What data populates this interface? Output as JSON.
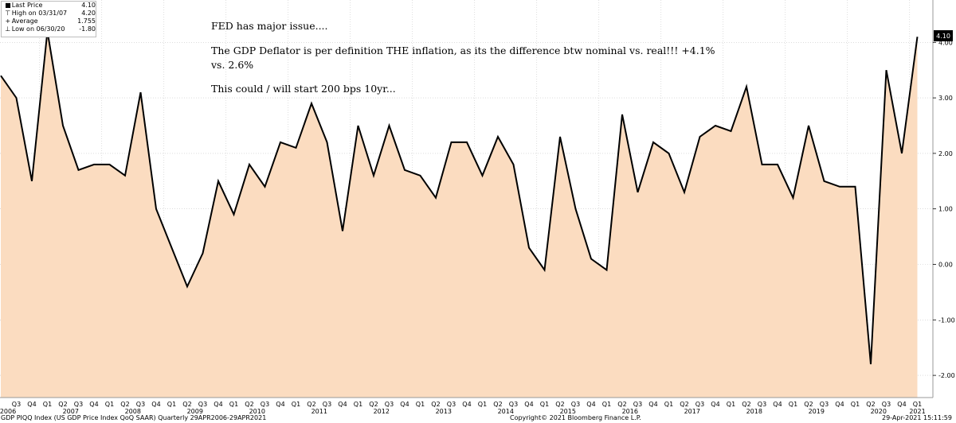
{
  "legend": {
    "rows": [
      {
        "label": "Last Price",
        "value": "4.10",
        "symbol": "■"
      },
      {
        "label": "High on 03/31/07",
        "value": "4.20",
        "symbol": "⊤"
      },
      {
        "label": "Average",
        "value": "1.755",
        "symbol": "+"
      },
      {
        "label": "Low on 06/30/20",
        "value": "-1.80",
        "symbol": "⊥"
      }
    ]
  },
  "annotation": {
    "line1": "FED has major issue....",
    "line2": "The GDP Deflator is per definition THE inflation, as its the difference btw nominal vs. real!!!  +4.1%",
    "line3": "vs. 2.6%",
    "line4": "This could / will start 200 bps 10yr..."
  },
  "footer": {
    "left": "GDP PIQQ Index (US GDP Price Index QoQ SAAR)  Quarterly 29APR2006-29APR2021",
    "center": "Copyright© 2021 Bloomberg Finance L.P.",
    "right": "29-Apr-2021 15:11:59"
  },
  "colors": {
    "fill": "#fbdcc0",
    "line": "#000000",
    "grid": "#c8c8c8",
    "label_bg": "#000000"
  },
  "chart_data": {
    "type": "area",
    "title": "",
    "ylim": [
      -2.4,
      4.6
    ],
    "yticks": [
      "-2.00",
      "-1.00",
      "0.00",
      "1.00",
      "2.00",
      "3.00",
      "4.00"
    ],
    "last_label": "4.10",
    "grid": true,
    "x": [
      "2006Q2",
      "2006Q3",
      "2006Q4",
      "2007Q1",
      "2007Q2",
      "2007Q3",
      "2007Q4",
      "2008Q1",
      "2008Q2",
      "2008Q3",
      "2008Q4",
      "2009Q1",
      "2009Q2",
      "2009Q3",
      "2009Q4",
      "2010Q1",
      "2010Q2",
      "2010Q3",
      "2010Q4",
      "2011Q1",
      "2011Q2",
      "2011Q3",
      "2011Q4",
      "2012Q1",
      "2012Q2",
      "2012Q3",
      "2012Q4",
      "2013Q1",
      "2013Q2",
      "2013Q3",
      "2013Q4",
      "2014Q1",
      "2014Q2",
      "2014Q3",
      "2014Q4",
      "2015Q1",
      "2015Q2",
      "2015Q3",
      "2015Q4",
      "2016Q1",
      "2016Q2",
      "2016Q3",
      "2016Q4",
      "2017Q1",
      "2017Q2",
      "2017Q3",
      "2017Q4",
      "2018Q1",
      "2018Q2",
      "2018Q3",
      "2018Q4",
      "2019Q1",
      "2019Q2",
      "2019Q3",
      "2019Q4",
      "2020Q1",
      "2020Q2",
      "2020Q3",
      "2020Q4",
      "2021Q1"
    ],
    "values": [
      3.4,
      3.0,
      1.5,
      4.2,
      2.5,
      1.7,
      1.8,
      1.8,
      1.6,
      3.1,
      1.0,
      0.3,
      -0.4,
      0.2,
      1.5,
      0.9,
      1.8,
      1.4,
      2.2,
      2.1,
      2.9,
      2.2,
      0.6,
      2.5,
      1.6,
      2.5,
      1.7,
      1.6,
      1.2,
      2.2,
      2.2,
      1.6,
      2.3,
      1.8,
      0.3,
      -0.1,
      2.3,
      1.0,
      0.1,
      -0.1,
      2.7,
      1.3,
      2.2,
      2.0,
      1.3,
      2.3,
      2.5,
      2.4,
      3.2,
      1.8,
      1.8,
      1.2,
      2.5,
      1.5,
      1.4,
      1.4,
      -1.8,
      3.5,
      2.0,
      4.1
    ],
    "x_quarter_labels": [
      "Q3",
      "Q4",
      "Q1",
      "Q2",
      "Q3",
      "Q4",
      "Q1",
      "Q2",
      "Q3",
      "Q4",
      "Q1",
      "Q2",
      "Q3",
      "Q4",
      "Q1",
      "Q2",
      "Q3",
      "Q4",
      "Q1",
      "Q2",
      "Q3",
      "Q4",
      "Q1",
      "Q2",
      "Q3",
      "Q4",
      "Q1",
      "Q2",
      "Q3",
      "Q4",
      "Q1",
      "Q2",
      "Q3",
      "Q4",
      "Q1",
      "Q2",
      "Q3",
      "Q4",
      "Q1",
      "Q2",
      "Q3",
      "Q4",
      "Q1",
      "Q2",
      "Q3",
      "Q4",
      "Q1",
      "Q2",
      "Q3",
      "Q4",
      "Q1",
      "Q2",
      "Q3",
      "Q4",
      "Q1",
      "Q2",
      "Q3",
      "Q4",
      "Q1"
    ],
    "x_year_labels": [
      "2006",
      "2007",
      "2008",
      "2009",
      "2010",
      "2011",
      "2012",
      "2013",
      "2014",
      "2015",
      "2016",
      "2017",
      "2018",
      "2019",
      "2020",
      "2021"
    ]
  }
}
